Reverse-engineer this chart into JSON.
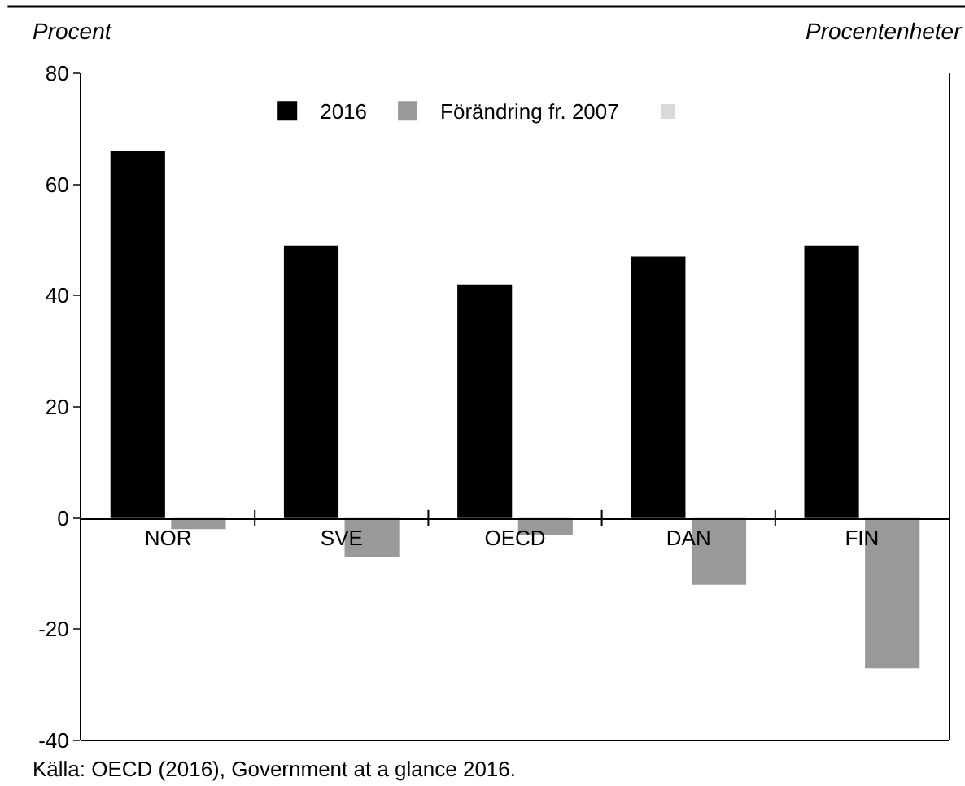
{
  "chart_data": {
    "type": "bar",
    "ylabel": "Procent",
    "y2label": "Procentenheter",
    "categories": [
      "NOR",
      "SVE",
      "OECD",
      "DAN",
      "FIN"
    ],
    "series": [
      {
        "name": "2016",
        "color": "#000000",
        "values": [
          66,
          49,
          42,
          47,
          49
        ]
      },
      {
        "name": "Förändring fr. 2007",
        "color": "#999999",
        "values": [
          -2,
          -7,
          -3,
          -12,
          -27
        ]
      }
    ],
    "ylim": [
      -40,
      80
    ],
    "yticks": [
      -40,
      -20,
      0,
      20,
      40,
      60,
      80
    ],
    "grid": false,
    "legend": "top",
    "annotations": [
      "Källa: OECD (2016), Government at a glance 2016."
    ]
  }
}
